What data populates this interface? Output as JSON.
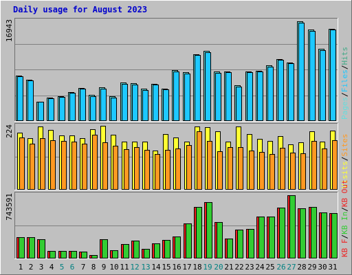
{
  "title": "Daily usage for August 2023",
  "colors": {
    "background": "#c0c0c0",
    "frame_light": "#ffffff",
    "frame_dark": "#6f6f6f",
    "grid": "#808080",
    "title": "#0000cc",
    "pages": "#66dddd",
    "files": "#1ec8ff",
    "hits": "#44aa88",
    "visits": "#ffff33",
    "sites": "#ff9922",
    "kb_in": "#33cc33",
    "kb_out": "#ee2222",
    "kb_f": "#ee2222",
    "weekend_label": "#008080",
    "day_label": "#000000"
  },
  "chart_data": [
    {
      "type": "bar",
      "panel": "top",
      "ytick_label": "16943",
      "ymax": 16943,
      "categories": [
        "1",
        "2",
        "3",
        "4",
        "5",
        "6",
        "7",
        "8",
        "9",
        "10",
        "11",
        "12",
        "13",
        "14",
        "15",
        "16",
        "17",
        "18",
        "19",
        "20",
        "21",
        "22",
        "23",
        "24",
        "25",
        "26",
        "27",
        "28",
        "29",
        "30",
        "31"
      ],
      "weekend_days": [
        5,
        6,
        12,
        13,
        19,
        20,
        26,
        27
      ],
      "legend": [
        {
          "label": "Pages",
          "color_key": "pages"
        },
        {
          "label": "Files",
          "color_key": "files"
        },
        {
          "label": "Hits",
          "color_key": "hits"
        }
      ],
      "series": [
        {
          "name": "Hits",
          "values": [
            7700,
            7000,
            3300,
            3900,
            4200,
            4900,
            5600,
            4400,
            5700,
            4200,
            6500,
            6400,
            5400,
            6300,
            5500,
            8600,
            8200,
            11300,
            11800,
            8300,
            8400,
            6000,
            8400,
            8500,
            9400,
            10500,
            9900,
            16800,
            15400,
            12200,
            15600
          ]
        },
        {
          "name": "Files",
          "values": [
            7500,
            6800,
            3200,
            3800,
            4100,
            4700,
            5400,
            4200,
            5500,
            4000,
            6300,
            6200,
            5200,
            6100,
            5300,
            8400,
            8000,
            11100,
            11600,
            8100,
            8200,
            5800,
            8200,
            8300,
            9200,
            10300,
            9700,
            16600,
            15200,
            12000,
            15400
          ]
        }
      ]
    },
    {
      "type": "bar",
      "panel": "middle",
      "ytick_label": "224",
      "ymax": 224,
      "categories": [
        "1",
        "2",
        "3",
        "4",
        "5",
        "6",
        "7",
        "8",
        "9",
        "10",
        "11",
        "12",
        "13",
        "14",
        "15",
        "16",
        "17",
        "18",
        "19",
        "20",
        "21",
        "22",
        "23",
        "24",
        "25",
        "26",
        "27",
        "28",
        "29",
        "30",
        "31"
      ],
      "legend": [
        {
          "label": "Visits",
          "color_key": "visits"
        },
        {
          "label": "Sites",
          "color_key": "sites"
        }
      ],
      "series": [
        {
          "name": "Visits",
          "values": [
            201,
            181,
            222,
            210,
            191,
            190,
            180,
            213,
            225,
            192,
            168,
            169,
            168,
            138,
            195,
            184,
            168,
            222,
            219,
            204,
            169,
            221,
            195,
            179,
            170,
            187,
            159,
            167,
            204,
            169,
            207
          ]
        },
        {
          "name": "Sites",
          "values": [
            182,
            161,
            180,
            174,
            171,
            169,
            162,
            192,
            165,
            154,
            143,
            149,
            140,
            126,
            139,
            144,
            156,
            205,
            170,
            136,
            149,
            150,
            138,
            133,
            126,
            147,
            130,
            128,
            170,
            144,
            174
          ]
        }
      ]
    },
    {
      "type": "bar",
      "panel": "bottom",
      "ytick_label": "743591",
      "ymax": 743591,
      "categories": [
        "1",
        "2",
        "3",
        "4",
        "5",
        "6",
        "7",
        "8",
        "9",
        "10",
        "11",
        "12",
        "13",
        "14",
        "15",
        "16",
        "17",
        "18",
        "19",
        "20",
        "21",
        "22",
        "23",
        "24",
        "25",
        "26",
        "27",
        "28",
        "29",
        "30",
        "31"
      ],
      "legend": [
        {
          "label": "KB F",
          "color_key": "kb_f"
        },
        {
          "label": "KB In",
          "color_key": "kb_in"
        },
        {
          "label": "KB Out",
          "color_key": "kb_out"
        }
      ],
      "series": [
        {
          "name": "KB In",
          "values": [
            245000,
            245000,
            227000,
            85000,
            90000,
            90000,
            80000,
            39000,
            220000,
            95000,
            165000,
            205000,
            112000,
            175000,
            214000,
            255000,
            410000,
            600000,
            658000,
            420000,
            235000,
            338000,
            345000,
            485000,
            487000,
            592000,
            738000,
            584000,
            597000,
            535000,
            525000
          ]
        },
        {
          "name": "KB Out",
          "values": [
            245000,
            245000,
            227000,
            85000,
            90000,
            90000,
            80000,
            39000,
            220000,
            95000,
            165000,
            205000,
            112000,
            175000,
            214000,
            255000,
            410000,
            600000,
            658000,
            420000,
            235000,
            338000,
            345000,
            485000,
            487000,
            592000,
            738000,
            584000,
            597000,
            535000,
            525000
          ]
        }
      ]
    }
  ]
}
